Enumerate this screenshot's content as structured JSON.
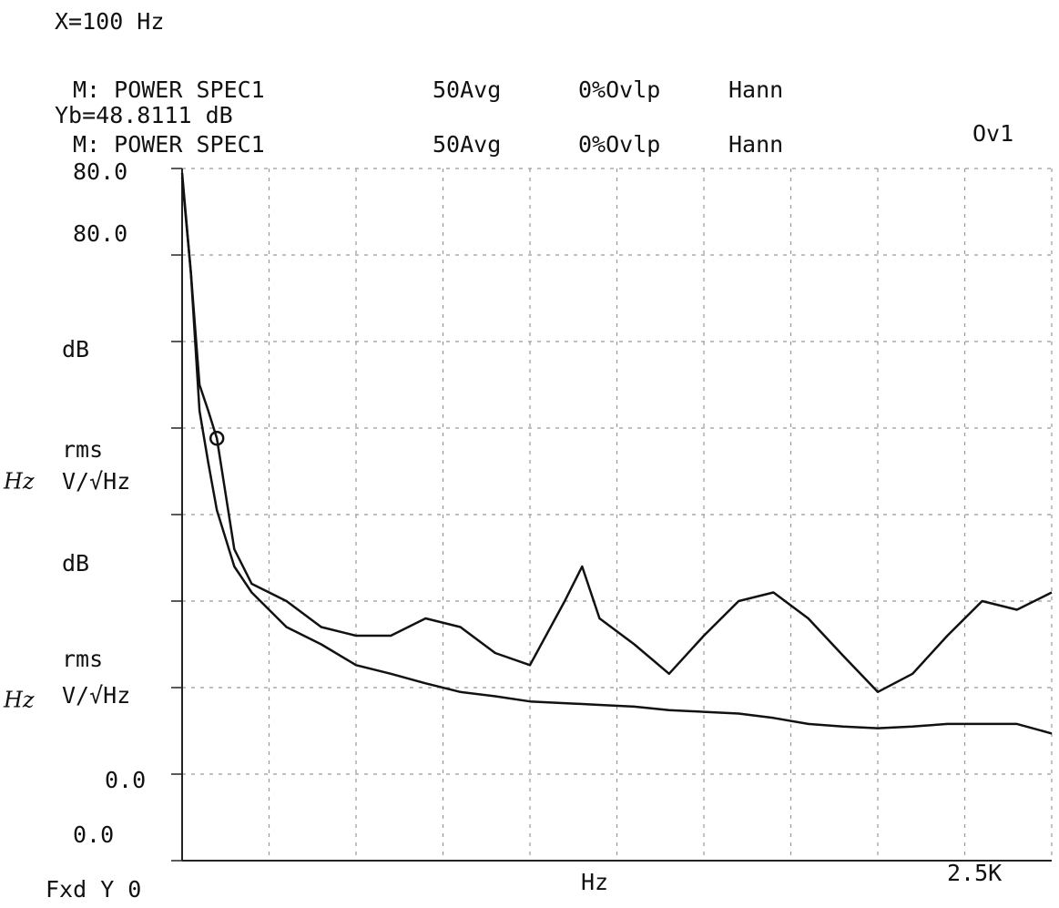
{
  "chart_data": {
    "type": "line",
    "title": "X=100 Hz",
    "readout": "Yb=48.8111 dB",
    "trace_headers": [
      {
        "name": "M: POWER SPEC1",
        "average": "50Avg",
        "overlap": "0%Ovlp",
        "window": "Hann"
      },
      {
        "name": "M: POWER SPEC1",
        "average": "50Avg",
        "overlap": "0%Ovlp",
        "window": "Hann",
        "flag": "Ov1"
      }
    ],
    "y_labels": [
      "80.0",
      "80.0",
      "dB",
      "rms",
      "V/√Hz",
      "dB",
      "rms",
      "V/√Hz",
      "0.0",
      "0.0"
    ],
    "unit_notes": [
      "Hz",
      "Hz"
    ],
    "x_start_label": "Fxd Y 0",
    "x_label": "Hz",
    "x_end_label": "2.5K",
    "x": [
      0,
      25,
      50,
      75,
      100,
      150,
      200,
      300,
      400,
      500,
      600,
      700,
      800,
      900,
      1000,
      1100,
      1150,
      1200,
      1300,
      1400,
      1500,
      1600,
      1700,
      1800,
      1900,
      2000,
      2100,
      2200,
      2300,
      2400,
      2500
    ],
    "series": [
      {
        "color": "#111111",
        "values": [
          79.5,
          68,
          55,
          52,
          48.8,
          36,
          32,
          30,
          27,
          26,
          26,
          28,
          27,
          24,
          22.6,
          30,
          34,
          28,
          25,
          21.6,
          26,
          30,
          31,
          28,
          23.7,
          19.5,
          21.6,
          26,
          30,
          29,
          31
        ]
      },
      {
        "color": "#111111",
        "values": [
          79,
          68,
          52,
          46,
          40.5,
          34,
          31,
          27,
          25,
          22.6,
          21.6,
          20.5,
          19.5,
          19,
          18.4,
          18.2,
          18.1,
          18,
          17.8,
          17.4,
          17.2,
          17,
          16.5,
          15.8,
          15.5,
          15.3,
          15.5,
          15.8,
          15.8,
          15.8,
          14.7
        ]
      }
    ],
    "marker": {
      "x": 100,
      "y": 48.8111
    },
    "xlim": [
      0,
      2500
    ],
    "ylim": [
      0,
      80
    ],
    "xticks": [
      0,
      250,
      500,
      750,
      1000,
      1250,
      1500,
      1750,
      2000,
      2250,
      2500
    ],
    "yticks": [
      0,
      10,
      20,
      30,
      40,
      50,
      60,
      70,
      80
    ],
    "grid": true
  }
}
